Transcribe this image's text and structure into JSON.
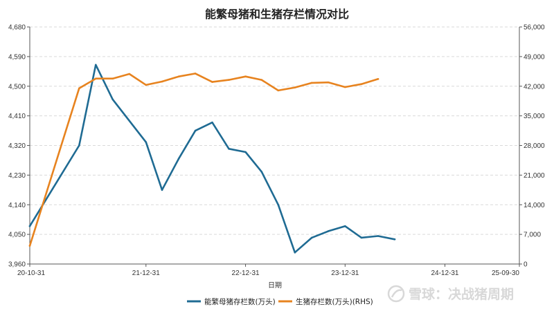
{
  "chart_data": {
    "type": "line",
    "title": "能繁母猪和生猪存栏情况对比",
    "xlabel": "日期",
    "x": [
      "2020-10-31",
      "2020-12-31",
      "2021-02-28",
      "2021-04-30",
      "2021-06-30",
      "2021-08-31",
      "2021-10-31",
      "2021-12-31",
      "2022-02-28",
      "2022-04-30",
      "2022-06-30",
      "2022-08-31",
      "2022-10-31",
      "2022-12-31",
      "2023-02-28",
      "2023-04-30",
      "2023-06-30",
      "2023-08-31",
      "2023-10-31",
      "2023-12-31",
      "2024-02-29",
      "2024-04-30",
      "2024-06-30",
      "2024-08-31",
      "2024-10-31",
      "2024-12-31",
      "2025-02-28",
      "2025-04-30",
      "2025-06-30",
      "2025-09-30"
    ],
    "x_ticks": [
      {
        "date": "2020-10-31",
        "label": "20-10-31"
      },
      {
        "date": "2021-12-31",
        "label": "21-12-31"
      },
      {
        "date": "2022-12-31",
        "label": "22-12-31"
      },
      {
        "date": "2023-12-31",
        "label": "23-12-31"
      },
      {
        "date": "2024-12-31",
        "label": "24-12-31"
      },
      {
        "date": "2025-09-30",
        "label": "25-09-30"
      }
    ],
    "y_left": {
      "min": 3960,
      "max": 4680,
      "ticks": [
        3960,
        4050,
        4140,
        4230,
        4320,
        4410,
        4500,
        4590,
        4680
      ],
      "tick_labels": [
        "3,960",
        "4,050",
        "4,140",
        "4,230",
        "4,320",
        "4,410",
        "4,500",
        "4,590",
        "4,680"
      ]
    },
    "y_right": {
      "min": 0,
      "max": 56000,
      "ticks": [
        0,
        7000,
        14000,
        21000,
        28000,
        35000,
        42000,
        49000,
        56000
      ],
      "tick_labels": [
        "0",
        "7,000",
        "14,000",
        "21,000",
        "28,000",
        "35,000",
        "42,000",
        "49,000",
        "56,000"
      ]
    },
    "grid": true,
    "legend_position": "bottom-center",
    "series": [
      {
        "name": "能繁母猪存栏数(万头)",
        "axis": "left",
        "color": "#1f6b93",
        "points": [
          [
            "2020-10-31",
            4075
          ],
          [
            "2021-04-30",
            4320
          ],
          [
            "2021-06-30",
            4565
          ],
          [
            "2021-08-31",
            4460
          ],
          [
            "2021-12-31",
            4330
          ],
          [
            "2022-02-28",
            4185
          ],
          [
            "2022-04-30",
            4280
          ],
          [
            "2022-06-30",
            4365
          ],
          [
            "2022-08-31",
            4390
          ],
          [
            "2022-10-31",
            4310
          ],
          [
            "2022-12-31",
            4300
          ],
          [
            "2023-02-28",
            4240
          ],
          [
            "2023-04-30",
            4140
          ],
          [
            "2023-06-30",
            3995
          ],
          [
            "2023-08-31",
            4040
          ],
          [
            "2023-10-31",
            4060
          ],
          [
            "2023-12-31",
            4075
          ],
          [
            "2024-02-29",
            4040
          ],
          [
            "2024-04-30",
            4045
          ],
          [
            "2024-06-30",
            4035
          ]
        ]
      },
      {
        "name": "生猪存栏数(万头)(RHS)",
        "axis": "right",
        "color": "#e7831f",
        "points": [
          [
            "2020-10-31",
            4300
          ],
          [
            "2021-04-30",
            41500
          ],
          [
            "2021-06-30",
            43800
          ],
          [
            "2021-08-31",
            43800
          ],
          [
            "2021-10-31",
            44900
          ],
          [
            "2021-12-31",
            42300
          ],
          [
            "2022-02-28",
            43100
          ],
          [
            "2022-04-30",
            44300
          ],
          [
            "2022-06-30",
            45000
          ],
          [
            "2022-08-31",
            43000
          ],
          [
            "2022-10-31",
            43500
          ],
          [
            "2022-12-31",
            44300
          ],
          [
            "2023-02-28",
            43500
          ],
          [
            "2023-04-30",
            41000
          ],
          [
            "2023-06-30",
            41700
          ],
          [
            "2023-08-31",
            42800
          ],
          [
            "2023-10-31",
            42900
          ],
          [
            "2023-12-31",
            41800
          ],
          [
            "2024-02-29",
            42500
          ],
          [
            "2024-04-30",
            43700
          ]
        ]
      }
    ]
  },
  "watermark": {
    "text": "雪球：决战猪周期",
    "icon": "snowball-logo"
  }
}
